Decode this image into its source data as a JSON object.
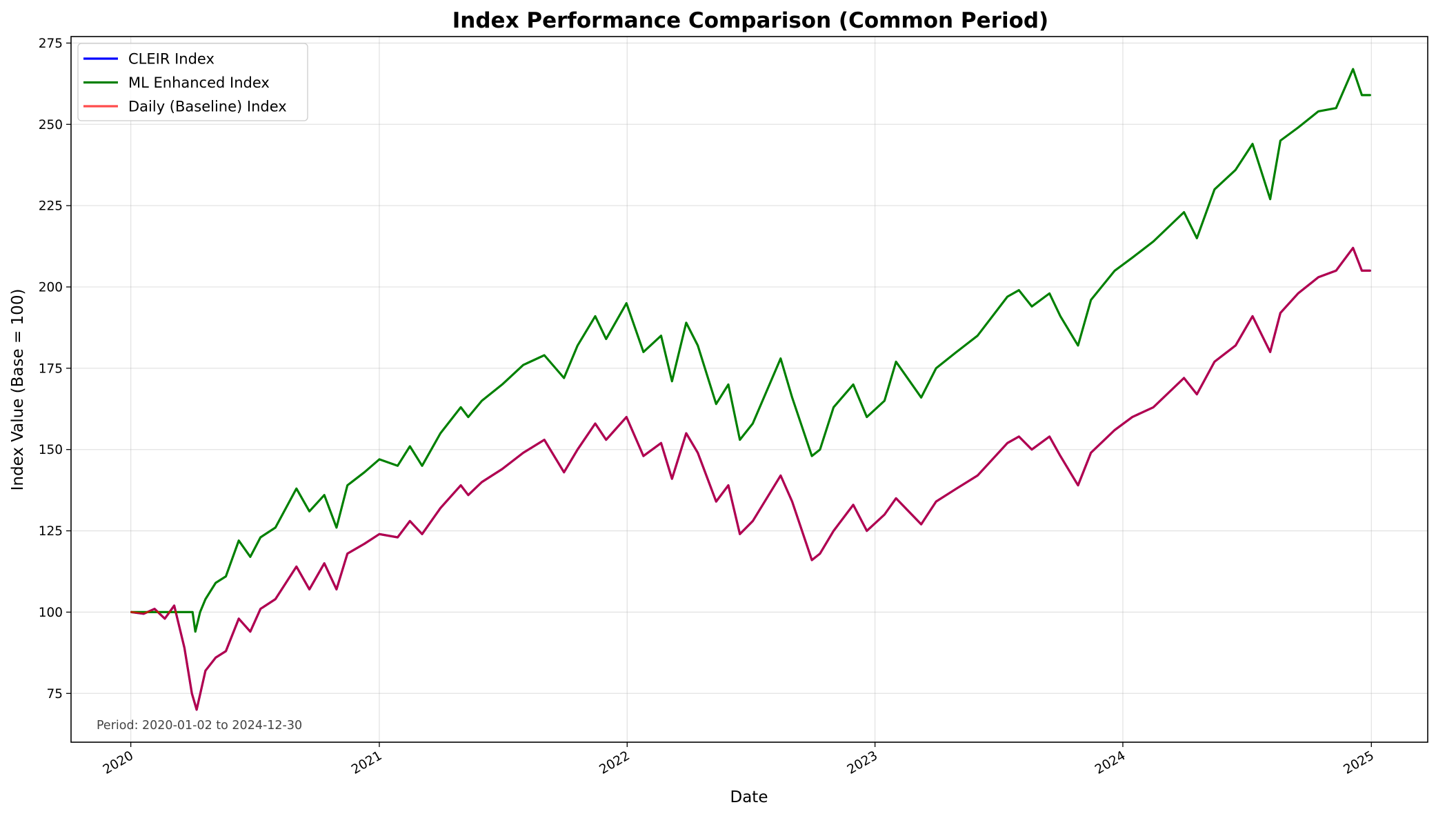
{
  "chart_data": {
    "type": "line",
    "title": "Index Performance Comparison (Common Period)",
    "xlabel": "Date",
    "ylabel": "Index Value (Base = 100)",
    "x_ticks": [
      "2020",
      "2021",
      "2022",
      "2023",
      "2024",
      "2025"
    ],
    "y_ticks": [
      75,
      100,
      125,
      150,
      175,
      200,
      225,
      250,
      275
    ],
    "xlim": [
      "2019-10-05",
      "2025-03-25"
    ],
    "ylim": [
      60,
      277
    ],
    "grid": true,
    "legend_position": "top-left",
    "annotation": "Period: 2020-01-02 to 2024-12-30",
    "series": [
      {
        "name": "CLEIR Index",
        "color": "#0000ff",
        "points": [
          [
            "2020-01-02",
            100
          ],
          [
            "2020-01-20",
            99.5
          ],
          [
            "2020-02-05",
            101
          ],
          [
            "2020-02-20",
            98
          ],
          [
            "2020-03-05",
            102
          ],
          [
            "2020-03-20",
            89
          ],
          [
            "2020-03-31",
            75
          ],
          [
            "2020-04-07",
            70
          ],
          [
            "2020-04-20",
            82
          ],
          [
            "2020-05-05",
            86
          ],
          [
            "2020-05-20",
            88
          ],
          [
            "2020-06-08",
            98
          ],
          [
            "2020-06-25",
            94
          ],
          [
            "2020-07-10",
            101
          ],
          [
            "2020-08-01",
            104
          ],
          [
            "2020-09-01",
            114
          ],
          [
            "2020-09-20",
            107
          ],
          [
            "2020-10-12",
            115
          ],
          [
            "2020-10-30",
            107
          ],
          [
            "2020-11-15",
            118
          ],
          [
            "2020-12-10",
            121
          ],
          [
            "2021-01-01",
            124
          ],
          [
            "2021-01-28",
            123
          ],
          [
            "2021-02-15",
            128
          ],
          [
            "2021-03-05",
            124
          ],
          [
            "2021-04-01",
            132
          ],
          [
            "2021-05-01",
            139
          ],
          [
            "2021-05-12",
            136
          ],
          [
            "2021-06-01",
            140
          ],
          [
            "2021-07-01",
            144
          ],
          [
            "2021-08-01",
            149
          ],
          [
            "2021-09-01",
            153
          ],
          [
            "2021-09-30",
            143
          ],
          [
            "2021-10-20",
            150
          ],
          [
            "2021-11-15",
            158
          ],
          [
            "2021-12-01",
            153
          ],
          [
            "2021-12-31",
            160
          ],
          [
            "2022-01-25",
            148
          ],
          [
            "2022-02-20",
            152
          ],
          [
            "2022-03-08",
            141
          ],
          [
            "2022-03-29",
            155
          ],
          [
            "2022-04-15",
            149
          ],
          [
            "2022-05-12",
            134
          ],
          [
            "2022-05-30",
            139
          ],
          [
            "2022-06-16",
            124
          ],
          [
            "2022-07-05",
            128
          ],
          [
            "2022-08-15",
            142
          ],
          [
            "2022-09-01",
            134
          ],
          [
            "2022-09-30",
            116
          ],
          [
            "2022-10-12",
            118
          ],
          [
            "2022-11-01",
            125
          ],
          [
            "2022-11-30",
            133
          ],
          [
            "2022-12-20",
            125
          ],
          [
            "2023-01-15",
            130
          ],
          [
            "2023-02-01",
            135
          ],
          [
            "2023-03-10",
            127
          ],
          [
            "2023-04-01",
            134
          ],
          [
            "2023-05-01",
            138
          ],
          [
            "2023-06-01",
            142
          ],
          [
            "2023-07-15",
            152
          ],
          [
            "2023-08-01",
            154
          ],
          [
            "2023-08-20",
            150
          ],
          [
            "2023-09-15",
            154
          ],
          [
            "2023-10-01",
            148
          ],
          [
            "2023-10-27",
            139
          ],
          [
            "2023-11-15",
            149
          ],
          [
            "2023-12-20",
            156
          ],
          [
            "2024-01-15",
            160
          ],
          [
            "2024-02-15",
            163
          ],
          [
            "2024-03-31",
            172
          ],
          [
            "2024-04-19",
            167
          ],
          [
            "2024-05-15",
            177
          ],
          [
            "2024-06-15",
            182
          ],
          [
            "2024-07-10",
            191
          ],
          [
            "2024-08-05",
            180
          ],
          [
            "2024-08-20",
            192
          ],
          [
            "2024-09-15",
            198
          ],
          [
            "2024-10-15",
            203
          ],
          [
            "2024-11-10",
            205
          ],
          [
            "2024-12-05",
            212
          ],
          [
            "2024-12-18",
            205
          ],
          [
            "2024-12-30",
            205
          ]
        ]
      },
      {
        "name": "ML Enhanced Index",
        "color": "#008000",
        "points": [
          [
            "2020-01-02",
            100
          ],
          [
            "2020-02-01",
            100
          ],
          [
            "2020-03-01",
            100
          ],
          [
            "2020-04-01",
            100
          ],
          [
            "2020-04-05",
            94
          ],
          [
            "2020-04-12",
            100
          ],
          [
            "2020-04-20",
            104
          ],
          [
            "2020-05-05",
            109
          ],
          [
            "2020-05-20",
            111
          ],
          [
            "2020-06-08",
            122
          ],
          [
            "2020-06-25",
            117
          ],
          [
            "2020-07-10",
            123
          ],
          [
            "2020-08-01",
            126
          ],
          [
            "2020-09-01",
            138
          ],
          [
            "2020-09-20",
            131
          ],
          [
            "2020-10-12",
            136
          ],
          [
            "2020-10-30",
            126
          ],
          [
            "2020-11-15",
            139
          ],
          [
            "2020-12-10",
            143
          ],
          [
            "2021-01-01",
            147
          ],
          [
            "2021-01-28",
            145
          ],
          [
            "2021-02-15",
            151
          ],
          [
            "2021-03-05",
            145
          ],
          [
            "2021-04-01",
            155
          ],
          [
            "2021-05-01",
            163
          ],
          [
            "2021-05-12",
            160
          ],
          [
            "2021-06-01",
            165
          ],
          [
            "2021-07-01",
            170
          ],
          [
            "2021-08-01",
            176
          ],
          [
            "2021-09-01",
            179
          ],
          [
            "2021-09-30",
            172
          ],
          [
            "2021-10-20",
            182
          ],
          [
            "2021-11-15",
            191
          ],
          [
            "2021-12-01",
            184
          ],
          [
            "2021-12-31",
            195
          ],
          [
            "2022-01-25",
            180
          ],
          [
            "2022-02-20",
            185
          ],
          [
            "2022-03-08",
            171
          ],
          [
            "2022-03-29",
            189
          ],
          [
            "2022-04-15",
            182
          ],
          [
            "2022-05-12",
            164
          ],
          [
            "2022-05-30",
            170
          ],
          [
            "2022-06-16",
            153
          ],
          [
            "2022-07-05",
            158
          ],
          [
            "2022-08-15",
            178
          ],
          [
            "2022-09-01",
            166
          ],
          [
            "2022-09-30",
            148
          ],
          [
            "2022-10-12",
            150
          ],
          [
            "2022-11-01",
            163
          ],
          [
            "2022-11-30",
            170
          ],
          [
            "2022-12-20",
            160
          ],
          [
            "2023-01-15",
            165
          ],
          [
            "2023-02-01",
            177
          ],
          [
            "2023-03-10",
            166
          ],
          [
            "2023-04-01",
            175
          ],
          [
            "2023-05-01",
            180
          ],
          [
            "2023-06-01",
            185
          ],
          [
            "2023-07-15",
            197
          ],
          [
            "2023-08-01",
            199
          ],
          [
            "2023-08-20",
            194
          ],
          [
            "2023-09-15",
            198
          ],
          [
            "2023-10-01",
            191
          ],
          [
            "2023-10-27",
            182
          ],
          [
            "2023-11-15",
            196
          ],
          [
            "2023-12-20",
            205
          ],
          [
            "2024-01-15",
            209
          ],
          [
            "2024-02-15",
            214
          ],
          [
            "2024-03-31",
            223
          ],
          [
            "2024-04-19",
            215
          ],
          [
            "2024-05-15",
            230
          ],
          [
            "2024-06-15",
            236
          ],
          [
            "2024-07-10",
            244
          ],
          [
            "2024-08-05",
            227
          ],
          [
            "2024-08-20",
            245
          ],
          [
            "2024-09-15",
            249
          ],
          [
            "2024-10-15",
            254
          ],
          [
            "2024-11-10",
            255
          ],
          [
            "2024-12-05",
            267
          ],
          [
            "2024-12-18",
            259
          ],
          [
            "2024-12-30",
            259
          ]
        ]
      },
      {
        "name": "Daily (Baseline) Index",
        "color": "#ff0000",
        "points": [
          [
            "2020-01-02",
            100
          ],
          [
            "2020-01-20",
            99.5
          ],
          [
            "2020-02-05",
            101
          ],
          [
            "2020-02-20",
            98
          ],
          [
            "2020-03-05",
            102
          ],
          [
            "2020-03-20",
            89
          ],
          [
            "2020-03-31",
            75
          ],
          [
            "2020-04-07",
            70
          ],
          [
            "2020-04-20",
            82
          ],
          [
            "2020-05-05",
            86
          ],
          [
            "2020-05-20",
            88
          ],
          [
            "2020-06-08",
            98
          ],
          [
            "2020-06-25",
            94
          ],
          [
            "2020-07-10",
            101
          ],
          [
            "2020-08-01",
            104
          ],
          [
            "2020-09-01",
            114
          ],
          [
            "2020-09-20",
            107
          ],
          [
            "2020-10-12",
            115
          ],
          [
            "2020-10-30",
            107
          ],
          [
            "2020-11-15",
            118
          ],
          [
            "2020-12-10",
            121
          ],
          [
            "2021-01-01",
            124
          ],
          [
            "2021-01-28",
            123
          ],
          [
            "2021-02-15",
            128
          ],
          [
            "2021-03-05",
            124
          ],
          [
            "2021-04-01",
            132
          ],
          [
            "2021-05-01",
            139
          ],
          [
            "2021-05-12",
            136
          ],
          [
            "2021-06-01",
            140
          ],
          [
            "2021-07-01",
            144
          ],
          [
            "2021-08-01",
            149
          ],
          [
            "2021-09-01",
            153
          ],
          [
            "2021-09-30",
            143
          ],
          [
            "2021-10-20",
            150
          ],
          [
            "2021-11-15",
            158
          ],
          [
            "2021-12-01",
            153
          ],
          [
            "2021-12-31",
            160
          ],
          [
            "2022-01-25",
            148
          ],
          [
            "2022-02-20",
            152
          ],
          [
            "2022-03-08",
            141
          ],
          [
            "2022-03-29",
            155
          ],
          [
            "2022-04-15",
            149
          ],
          [
            "2022-05-12",
            134
          ],
          [
            "2022-05-30",
            139
          ],
          [
            "2022-06-16",
            124
          ],
          [
            "2022-07-05",
            128
          ],
          [
            "2022-08-15",
            142
          ],
          [
            "2022-09-01",
            134
          ],
          [
            "2022-09-30",
            116
          ],
          [
            "2022-10-12",
            118
          ],
          [
            "2022-11-01",
            125
          ],
          [
            "2022-11-30",
            133
          ],
          [
            "2022-12-20",
            125
          ],
          [
            "2023-01-15",
            130
          ],
          [
            "2023-02-01",
            135
          ],
          [
            "2023-03-10",
            127
          ],
          [
            "2023-04-01",
            134
          ],
          [
            "2023-05-01",
            138
          ],
          [
            "2023-06-01",
            142
          ],
          [
            "2023-07-15",
            152
          ],
          [
            "2023-08-01",
            154
          ],
          [
            "2023-08-20",
            150
          ],
          [
            "2023-09-15",
            154
          ],
          [
            "2023-10-01",
            148
          ],
          [
            "2023-10-27",
            139
          ],
          [
            "2023-11-15",
            149
          ],
          [
            "2023-12-20",
            156
          ],
          [
            "2024-01-15",
            160
          ],
          [
            "2024-02-15",
            163
          ],
          [
            "2024-03-31",
            172
          ],
          [
            "2024-04-19",
            167
          ],
          [
            "2024-05-15",
            177
          ],
          [
            "2024-06-15",
            182
          ],
          [
            "2024-07-10",
            191
          ],
          [
            "2024-08-05",
            180
          ],
          [
            "2024-08-20",
            192
          ],
          [
            "2024-09-15",
            198
          ],
          [
            "2024-10-15",
            203
          ],
          [
            "2024-11-10",
            205
          ],
          [
            "2024-12-05",
            212
          ],
          [
            "2024-12-18",
            205
          ],
          [
            "2024-12-30",
            205
          ]
        ]
      }
    ]
  }
}
